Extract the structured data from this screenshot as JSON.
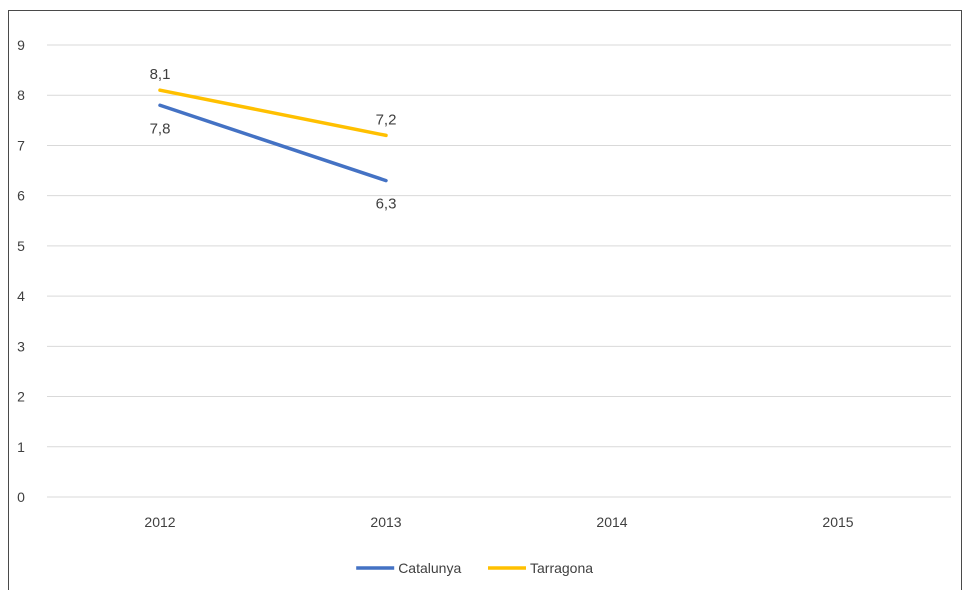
{
  "chart_data": {
    "type": "line",
    "categories": [
      "2012",
      "2013",
      "2014",
      "2015"
    ],
    "series": [
      {
        "name": "Catalunya",
        "color": "#4472C4",
        "values": [
          7.8,
          6.3,
          null,
          null
        ],
        "labels": [
          "7,8",
          "6,3",
          "",
          ""
        ],
        "label_pos": "below"
      },
      {
        "name": "Tarragona",
        "color": "#FFC000",
        "values": [
          8.1,
          7.2,
          null,
          null
        ],
        "labels": [
          "8,1",
          "7,2",
          "",
          ""
        ],
        "label_pos": "above"
      }
    ],
    "ylim": [
      0,
      9
    ],
    "yticks": [
      0,
      1,
      2,
      3,
      4,
      5,
      6,
      7,
      8,
      9
    ],
    "grid": true,
    "gridline_color": "#d9d9d9",
    "legend_position": "bottom",
    "title": "",
    "xlabel": "",
    "ylabel": ""
  }
}
